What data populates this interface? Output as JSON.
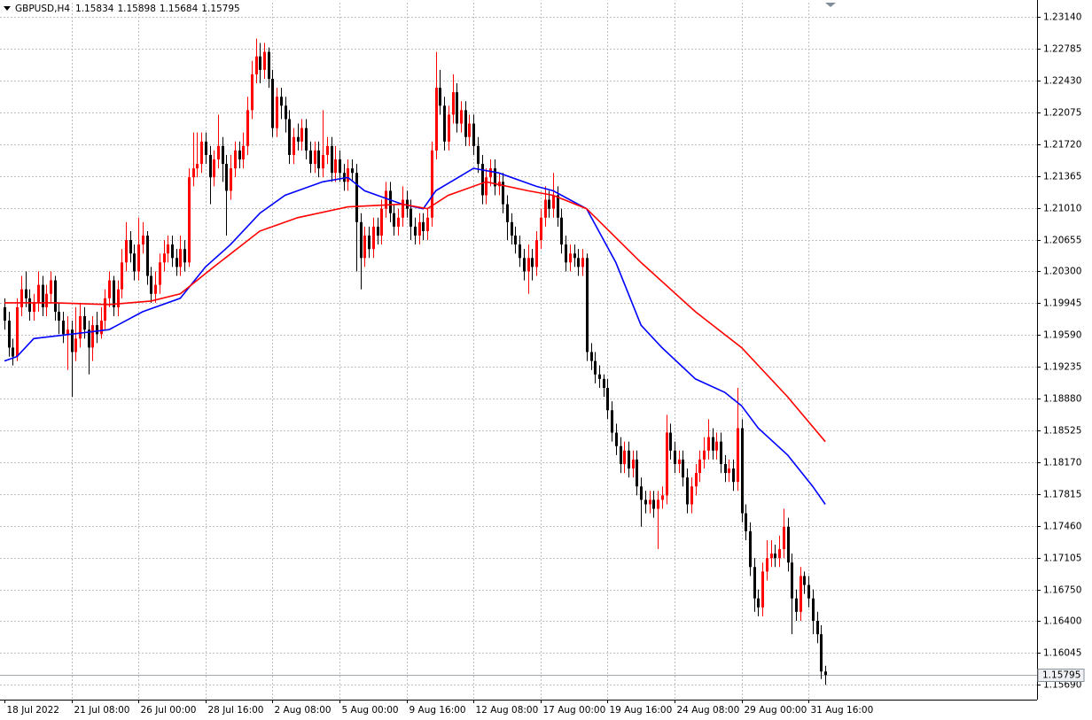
{
  "chart_data": {
    "type": "candlestick",
    "title": "GBPUSD,H4",
    "categories": [
      "18 Jul 2022",
      null,
      null,
      null,
      null,
      null,
      null,
      null,
      null,
      null,
      null,
      null,
      null,
      null,
      null,
      null,
      "21 Jul 08:00",
      null,
      null,
      null,
      null,
      null,
      null,
      null,
      null,
      null,
      null,
      null,
      null,
      null,
      null,
      null,
      "26 Jul 00:00",
      null,
      null,
      null,
      null,
      null,
      null,
      null,
      null,
      null,
      null,
      null,
      null,
      null,
      null,
      null,
      "28 Jul 16:00",
      null,
      null,
      null,
      null,
      null,
      null,
      null,
      null,
      null,
      null,
      null,
      null,
      null,
      null,
      null,
      "2 Aug 08:00",
      null,
      null,
      null,
      null,
      null,
      null,
      null,
      null,
      null,
      null,
      null,
      null,
      null,
      null,
      null,
      "5 Aug 00:00",
      null,
      null,
      null,
      null,
      null,
      null,
      null,
      null,
      null,
      null,
      null,
      null,
      null,
      null,
      null,
      "9 Aug 16:00",
      null,
      null,
      null,
      null,
      null,
      null,
      null,
      null,
      null,
      null,
      null,
      null,
      null,
      null,
      null,
      "12 Aug 08:00",
      null,
      null,
      null,
      null,
      null,
      null,
      null,
      null,
      null,
      null,
      null,
      null,
      null,
      null,
      null,
      "17 Aug 00:00",
      null,
      null,
      null,
      null,
      null,
      null,
      null,
      null,
      null,
      null,
      null,
      null,
      null,
      null,
      null,
      "19 Aug 16:00",
      null,
      null,
      null,
      null,
      null,
      null,
      null,
      null,
      null,
      null,
      null,
      null,
      null,
      null,
      null,
      "24 Aug 08:00",
      null,
      null,
      null,
      null,
      null,
      null,
      null,
      null,
      null,
      null,
      null,
      null,
      null,
      null,
      null,
      "29 Aug 00:00",
      null,
      null,
      null,
      null,
      null,
      null,
      null,
      null,
      null,
      null,
      null,
      null,
      null,
      null,
      null,
      "31 Aug 16:00",
      null,
      null,
      null,
      null
    ],
    "open": [
      1.199,
      1.1975,
      1.1945,
      1.1935,
      1.199,
      1.201,
      1.2,
      1.1985,
      1.1995,
      1.2015,
      1.199,
      1.2005,
      1.202,
      1.1985,
      1.1975,
      1.196,
      1.1965,
      1.194,
      1.1955,
      1.198,
      1.1965,
      1.1945,
      1.197,
      1.196,
      1.1975,
      1.2,
      1.202,
      1.199,
      1.201,
      1.204,
      1.2065,
      1.205,
      1.203,
      1.206,
      1.207,
      1.2025,
      1.2005,
      1.2015,
      1.204,
      1.205,
      1.206,
      1.2045,
      1.2035,
      1.2055,
      1.204,
      1.2135,
      1.2145,
      1.215,
      1.2175,
      1.216,
      1.2135,
      1.2155,
      1.217,
      1.215,
      1.212,
      1.2145,
      1.2165,
      1.2155,
      1.217,
      1.221,
      1.225,
      1.227,
      1.2255,
      1.2275,
      1.2245,
      1.219,
      1.2225,
      1.2215,
      1.22,
      1.216,
      1.218,
      1.2175,
      1.219,
      1.2165,
      1.215,
      1.2165,
      1.2145,
      1.216,
      1.217,
      1.214,
      1.2155,
      1.214,
      1.213,
      1.2145,
      1.214,
      1.2085,
      1.2045,
      1.207,
      1.2055,
      1.208,
      1.207,
      1.21,
      1.212,
      1.2095,
      1.208,
      1.209,
      1.211,
      1.21,
      1.208,
      1.207,
      1.2085,
      1.2075,
      1.209,
      1.2165,
      1.2235,
      1.2215,
      1.2175,
      1.2205,
      1.223,
      1.2195,
      1.221,
      1.218,
      1.2195,
      1.217,
      1.215,
      1.2115,
      1.2135,
      1.2145,
      1.2125,
      1.213,
      1.2105,
      1.2085,
      1.207,
      1.206,
      1.2045,
      1.203,
      1.2045,
      1.2035,
      1.2065,
      1.209,
      1.211,
      1.21,
      1.2115,
      1.209,
      1.206,
      1.204,
      1.205,
      1.2045,
      1.2035,
      1.2045,
      1.194,
      1.193,
      1.1915,
      1.191,
      1.19,
      1.1875,
      1.185,
      1.1835,
      1.1815,
      1.183,
      1.181,
      1.182,
      1.179,
      1.1775,
      1.177,
      1.1775,
      1.1765,
      1.1775,
      1.178,
      1.185,
      1.183,
      1.1815,
      1.182,
      1.18,
      1.177,
      1.179,
      1.1805,
      1.182,
      1.183,
      1.1845,
      1.183,
      1.184,
      1.1815,
      1.1805,
      1.181,
      1.1795,
      1.1855,
      1.176,
      1.174,
      1.17,
      1.1665,
      1.1655,
      1.1695,
      1.171,
      1.1715,
      1.171,
      1.172,
      1.1745,
      1.1705,
      1.1665,
      1.165,
      1.169,
      1.168,
      1.1665,
      1.164,
      1.1625,
      1.15834
    ],
    "high": [
      1.2,
      1.1985,
      1.1955,
      1.2,
      1.2025,
      1.203,
      1.201,
      1.2005,
      1.203,
      1.2025,
      1.2015,
      1.203,
      1.2025,
      1.1995,
      1.1985,
      1.198,
      1.1975,
      1.199,
      1.1995,
      1.199,
      1.1975,
      1.198,
      1.1985,
      1.199,
      1.201,
      1.203,
      1.2025,
      1.202,
      1.2055,
      1.2085,
      1.2075,
      1.206,
      1.209,
      1.2085,
      1.2075,
      1.2035,
      1.203,
      1.205,
      1.2065,
      1.207,
      1.207,
      1.2055,
      1.207,
      1.2065,
      1.2145,
      1.2185,
      1.2185,
      1.2185,
      1.2185,
      1.217,
      1.2165,
      1.2205,
      1.218,
      1.216,
      1.216,
      1.2175,
      1.2175,
      1.2185,
      1.2225,
      1.2265,
      1.229,
      1.2285,
      1.2285,
      1.228,
      1.2255,
      1.2235,
      1.2235,
      1.2225,
      1.221,
      1.219,
      1.2195,
      1.22,
      1.22,
      1.2175,
      1.2175,
      1.2175,
      1.221,
      1.218,
      1.218,
      1.217,
      1.2165,
      1.215,
      1.2155,
      1.2155,
      1.215,
      1.2095,
      1.208,
      1.208,
      1.209,
      1.209,
      1.211,
      1.213,
      1.213,
      1.2105,
      1.21,
      1.2125,
      1.212,
      1.211,
      1.209,
      1.2095,
      1.2095,
      1.21,
      1.2175,
      1.2275,
      1.2255,
      1.2225,
      1.2215,
      1.225,
      1.224,
      1.222,
      1.222,
      1.2205,
      1.2205,
      1.218,
      1.216,
      1.2145,
      1.2155,
      1.2155,
      1.214,
      1.214,
      1.2115,
      1.2095,
      1.208,
      1.207,
      1.2055,
      1.206,
      1.2055,
      1.2075,
      1.21,
      1.2125,
      1.212,
      1.214,
      1.2125,
      1.21,
      1.207,
      1.206,
      1.206,
      1.2055,
      1.2055,
      1.205,
      1.195,
      1.194,
      1.1925,
      1.1915,
      1.191,
      1.1885,
      1.186,
      1.1845,
      1.184,
      1.184,
      1.183,
      1.183,
      1.18,
      1.1785,
      1.1785,
      1.1785,
      1.1785,
      1.179,
      1.187,
      1.186,
      1.184,
      1.183,
      1.183,
      1.181,
      1.18,
      1.1815,
      1.183,
      1.1845,
      1.1865,
      1.1855,
      1.185,
      1.185,
      1.1825,
      1.182,
      1.182,
      1.19,
      1.1865,
      1.177,
      1.175,
      1.171,
      1.1675,
      1.1705,
      1.173,
      1.173,
      1.1725,
      1.1735,
      1.1765,
      1.1755,
      1.1715,
      1.1675,
      1.17,
      1.1695,
      1.169,
      1.1675,
      1.165,
      1.1635,
      1.15898
    ],
    "low": [
      1.1965,
      1.1935,
      1.1925,
      1.193,
      1.198,
      1.199,
      1.1975,
      1.1975,
      1.1985,
      1.198,
      1.198,
      1.1995,
      1.1975,
      1.196,
      1.195,
      1.192,
      1.189,
      1.193,
      1.1945,
      1.1955,
      1.1915,
      1.193,
      1.195,
      1.1955,
      1.1965,
      1.199,
      1.198,
      1.198,
      1.2,
      1.203,
      1.204,
      1.202,
      1.202,
      1.205,
      1.2015,
      1.1995,
      1.1995,
      1.2005,
      1.203,
      1.204,
      1.2035,
      1.2025,
      1.2025,
      1.203,
      1.2035,
      1.2125,
      1.2135,
      1.214,
      1.215,
      1.2105,
      1.2125,
      1.2145,
      1.213,
      1.207,
      1.211,
      1.2135,
      1.2145,
      1.2145,
      1.216,
      1.22,
      1.224,
      1.224,
      1.2245,
      1.2235,
      1.218,
      1.218,
      1.22,
      1.2185,
      1.215,
      1.215,
      1.2165,
      1.2165,
      1.2155,
      1.214,
      1.214,
      1.2135,
      1.2135,
      1.215,
      1.213,
      1.213,
      1.213,
      1.212,
      1.212,
      1.213,
      1.203,
      1.201,
      1.2035,
      1.2045,
      1.2045,
      1.206,
      1.206,
      1.209,
      1.2085,
      1.207,
      1.207,
      1.208,
      1.209,
      1.2065,
      1.206,
      1.206,
      1.2065,
      1.2065,
      1.208,
      1.2155,
      1.2205,
      1.2165,
      1.2165,
      1.2195,
      1.2185,
      1.2185,
      1.217,
      1.217,
      1.216,
      1.214,
      1.2105,
      1.2105,
      1.2125,
      1.2115,
      1.2115,
      1.2095,
      1.2065,
      1.206,
      1.205,
      1.2035,
      1.202,
      1.2005,
      1.202,
      1.2025,
      1.2055,
      1.208,
      1.209,
      1.209,
      1.208,
      1.205,
      1.203,
      1.203,
      1.2035,
      1.2025,
      1.2025,
      1.193,
      1.192,
      1.1905,
      1.19,
      1.189,
      1.1865,
      1.184,
      1.1825,
      1.1805,
      1.1805,
      1.18,
      1.18,
      1.178,
      1.1745,
      1.176,
      1.176,
      1.1755,
      1.172,
      1.1765,
      1.177,
      1.182,
      1.1805,
      1.1805,
      1.179,
      1.176,
      1.176,
      1.178,
      1.1795,
      1.181,
      1.182,
      1.182,
      1.182,
      1.1805,
      1.1795,
      1.1795,
      1.1785,
      1.1785,
      1.175,
      1.173,
      1.169,
      1.165,
      1.1645,
      1.1645,
      1.1685,
      1.17,
      1.17,
      1.17,
      1.171,
      1.1695,
      1.1625,
      1.164,
      1.164,
      1.167,
      1.1655,
      1.1625,
      1.1615,
      1.1575,
      1.15684
    ],
    "close": [
      1.1975,
      1.1945,
      1.1935,
      1.199,
      1.201,
      1.2,
      1.1985,
      1.1995,
      1.2015,
      1.199,
      1.2005,
      1.202,
      1.1985,
      1.1975,
      1.196,
      1.1965,
      1.194,
      1.1955,
      1.198,
      1.1965,
      1.1945,
      1.197,
      1.196,
      1.1975,
      1.2,
      1.202,
      1.199,
      1.201,
      1.204,
      1.2065,
      1.205,
      1.203,
      1.206,
      1.207,
      1.2025,
      1.2005,
      1.2015,
      1.204,
      1.205,
      1.206,
      1.2045,
      1.2035,
      1.2055,
      1.204,
      1.2135,
      1.2145,
      1.215,
      1.2175,
      1.216,
      1.2135,
      1.2155,
      1.217,
      1.215,
      1.212,
      1.2145,
      1.2165,
      1.2155,
      1.217,
      1.221,
      1.225,
      1.227,
      1.2255,
      1.2275,
      1.2245,
      1.219,
      1.2225,
      1.2215,
      1.22,
      1.216,
      1.218,
      1.2175,
      1.219,
      1.2165,
      1.215,
      1.2165,
      1.2145,
      1.216,
      1.217,
      1.214,
      1.2155,
      1.214,
      1.213,
      1.2145,
      1.214,
      1.2085,
      1.2045,
      1.207,
      1.2055,
      1.208,
      1.207,
      1.21,
      1.212,
      1.2095,
      1.208,
      1.209,
      1.211,
      1.21,
      1.208,
      1.207,
      1.2085,
      1.2075,
      1.209,
      1.2165,
      1.2235,
      1.2215,
      1.2175,
      1.2205,
      1.223,
      1.2195,
      1.221,
      1.218,
      1.2195,
      1.217,
      1.215,
      1.2115,
      1.2135,
      1.2145,
      1.2125,
      1.213,
      1.2105,
      1.2085,
      1.207,
      1.206,
      1.2045,
      1.203,
      1.2045,
      1.2035,
      1.2065,
      1.209,
      1.211,
      1.21,
      1.2115,
      1.209,
      1.206,
      1.204,
      1.205,
      1.2045,
      1.2035,
      1.2045,
      1.194,
      1.193,
      1.1915,
      1.191,
      1.19,
      1.1875,
      1.185,
      1.1835,
      1.1815,
      1.183,
      1.181,
      1.182,
      1.179,
      1.1775,
      1.177,
      1.1775,
      1.1765,
      1.1775,
      1.178,
      1.185,
      1.183,
      1.1815,
      1.182,
      1.18,
      1.177,
      1.179,
      1.1805,
      1.182,
      1.183,
      1.1845,
      1.183,
      1.184,
      1.1815,
      1.1805,
      1.181,
      1.1795,
      1.1855,
      1.176,
      1.174,
      1.17,
      1.1665,
      1.1655,
      1.1695,
      1.171,
      1.1715,
      1.171,
      1.172,
      1.1745,
      1.1705,
      1.1665,
      1.165,
      1.169,
      1.168,
      1.1665,
      1.164,
      1.1625,
      1.15834,
      1.15795
    ],
    "up_color": "#ff0000",
    "down_color": "#000000",
    "lines": [
      {
        "color": "#0000ff",
        "x": [
          0,
          3,
          7,
          16,
          25,
          33,
          42,
          48,
          54,
          61,
          67,
          76,
          82,
          86,
          95,
          100,
          103,
          112,
          118,
          127,
          131,
          139,
          146,
          152,
          157,
          165,
          172,
          176,
          180,
          187,
          193,
          196
        ],
        "values": [
          1.193,
          1.1935,
          1.1955,
          1.196,
          1.1965,
          1.1985,
          1.2,
          1.2035,
          1.206,
          1.2095,
          1.2115,
          1.213,
          1.2135,
          1.212,
          1.2105,
          1.21,
          1.212,
          1.2145,
          1.214,
          1.2125,
          1.212,
          1.21,
          1.204,
          1.197,
          1.1945,
          1.191,
          1.1895,
          1.188,
          1.1855,
          1.1825,
          1.179,
          1.177
        ]
      },
      {
        "color": "#ff0000",
        "x": [
          0,
          12,
          25,
          35,
          42,
          50,
          61,
          70,
          82,
          95,
          101,
          106,
          115,
          125,
          131,
          139,
          152,
          165,
          176,
          187,
          196
        ],
        "values": [
          1.1995,
          1.1995,
          1.1993,
          1.1997,
          1.2005,
          1.2035,
          1.2075,
          1.209,
          1.2102,
          1.2105,
          1.21,
          1.2115,
          1.213,
          1.212,
          1.2115,
          1.21,
          1.204,
          1.1985,
          1.1945,
          1.189,
          1.184
        ]
      }
    ],
    "ylim": [
      1.1552,
      1.233
    ],
    "yticks": [
      {
        "value": 1.2314,
        "label": "1.23140"
      },
      {
        "value": 1.22785,
        "label": "1.22785"
      },
      {
        "value": 1.2243,
        "label": "1.22430"
      },
      {
        "value": 1.22075,
        "label": "1.22075"
      },
      {
        "value": 1.2172,
        "label": "1.21720"
      },
      {
        "value": 1.21365,
        "label": "1.21365"
      },
      {
        "value": 1.2101,
        "label": "1.21010"
      },
      {
        "value": 1.20655,
        "label": "1.20655"
      },
      {
        "value": 1.203,
        "label": "1.20300"
      },
      {
        "value": 1.19945,
        "label": "1.19945"
      },
      {
        "value": 1.1959,
        "label": "1.19590"
      },
      {
        "value": 1.19235,
        "label": "1.19235"
      },
      {
        "value": 1.1888,
        "label": "1.18880"
      },
      {
        "value": 1.18525,
        "label": "1.18525"
      },
      {
        "value": 1.1817,
        "label": "1.18170"
      },
      {
        "value": 1.17815,
        "label": "1.17815"
      },
      {
        "value": 1.1746,
        "label": "1.17460"
      },
      {
        "value": 1.17105,
        "label": "1.17105"
      },
      {
        "value": 1.1675,
        "label": "1.16750"
      },
      {
        "value": 1.164,
        "label": "1.16400"
      },
      {
        "value": 1.16045,
        "label": "1.16045"
      },
      {
        "value": 1.1569,
        "label": "1.15690"
      }
    ],
    "grid": true
  }
}
